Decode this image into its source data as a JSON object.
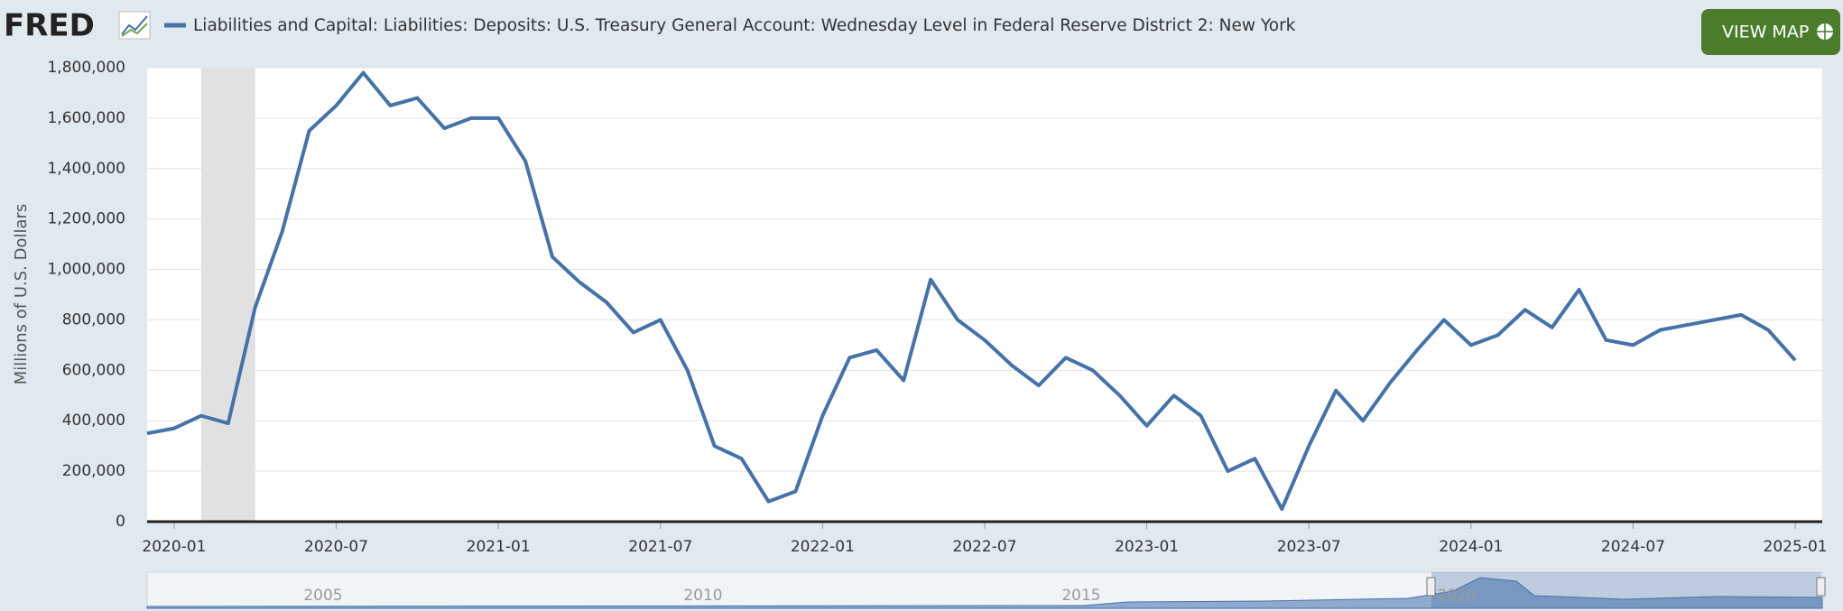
{
  "logo": "FRED",
  "button": "VIEW MAP",
  "navigator": {
    "labels": [
      "2005",
      "2010",
      "2015",
      "2020"
    ]
  },
  "chart_data": {
    "type": "line",
    "title": "Liabilities and Capital: Liabilities: Deposits: U.S. Treasury General Account: Wednesday Level in Federal Reserve District 2: New York",
    "y_label": "Millions of U.S. Dollars",
    "x": [
      "2019-12",
      "2020-01",
      "2020-02",
      "2020-03",
      "2020-04",
      "2020-05",
      "2020-06",
      "2020-07",
      "2020-08",
      "2020-09",
      "2020-10",
      "2020-11",
      "2020-12",
      "2021-01",
      "2021-02",
      "2021-03",
      "2021-04",
      "2021-05",
      "2021-06",
      "2021-07",
      "2021-08",
      "2021-09",
      "2021-10",
      "2021-11",
      "2021-12",
      "2022-01",
      "2022-02",
      "2022-03",
      "2022-04",
      "2022-05",
      "2022-06",
      "2022-07",
      "2022-08",
      "2022-09",
      "2022-10",
      "2022-11",
      "2022-12",
      "2023-01",
      "2023-02",
      "2023-03",
      "2023-04",
      "2023-05",
      "2023-06",
      "2023-07",
      "2023-08",
      "2023-09",
      "2023-10",
      "2023-11",
      "2023-12",
      "2024-01",
      "2024-02",
      "2024-03",
      "2024-04",
      "2024-05",
      "2024-06",
      "2024-07",
      "2024-08",
      "2024-09",
      "2024-10",
      "2024-11",
      "2024-12",
      "2025-01"
    ],
    "series": [
      {
        "name": "Liabilities and Capital: Liabilities: Deposits: U.S. Treasury General Account: Wednesday Level in Federal Reserve District 2: New York",
        "color": "#4572a7",
        "values": [
          350000,
          370000,
          420000,
          390000,
          850000,
          1150000,
          1550000,
          1650000,
          1780000,
          1650000,
          1680000,
          1560000,
          1600000,
          1600000,
          1430000,
          1050000,
          950000,
          870000,
          750000,
          800000,
          600000,
          300000,
          250000,
          80000,
          120000,
          420000,
          650000,
          680000,
          560000,
          960000,
          800000,
          720000,
          620000,
          540000,
          650000,
          600000,
          500000,
          380000,
          500000,
          420000,
          200000,
          250000,
          50000,
          300000,
          520000,
          400000,
          550000,
          680000,
          800000,
          700000,
          740000,
          840000,
          770000,
          920000,
          720000,
          700000,
          760000,
          780000,
          800000,
          820000,
          760000,
          640000
        ]
      }
    ],
    "xlim": [
      "2019-12",
      "2025-02"
    ],
    "xticks": [
      "2020-01",
      "2020-07",
      "2021-01",
      "2021-07",
      "2022-01",
      "2022-07",
      "2023-01",
      "2023-07",
      "2024-01",
      "2024-07",
      "2025-01"
    ],
    "ylim": [
      0,
      1800000
    ],
    "yticks": [
      0,
      {
        "value": 200000,
        "label": "200,000"
      },
      {
        "value": 400000,
        "label": "400,000"
      },
      {
        "value": 600000,
        "label": "600,000"
      },
      {
        "value": 800000,
        "label": "800,000"
      },
      {
        "value": 1000000,
        "label": "1,000,000"
      },
      {
        "value": 1200000,
        "label": "1,200,000"
      },
      {
        "value": 1400000,
        "label": "1,400,000"
      },
      {
        "value": 1600000,
        "label": "1,600,000"
      },
      {
        "value": 1800000,
        "label": "1,800,000"
      }
    ],
    "grid": true,
    "shading": {
      "start": "2020-02",
      "end": "2020-04",
      "color": "#e1e1e1"
    }
  }
}
